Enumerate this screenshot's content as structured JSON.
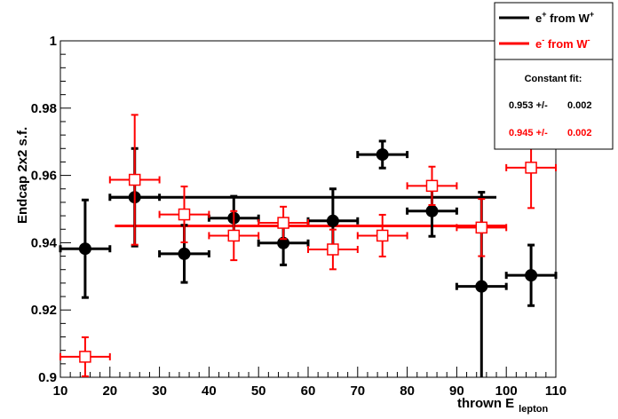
{
  "chart_data": {
    "type": "scatter",
    "xlabel_main": "thrown E",
    "xlabel_sub": "lepton",
    "ylabel": "Endcap 2x2 s.f.",
    "xlim": [
      10,
      110
    ],
    "ylim": [
      0.9,
      1.0
    ],
    "x_ticks": [
      "10",
      "20",
      "30",
      "40",
      "50",
      "60",
      "70",
      "80",
      "90",
      "100",
      "110"
    ],
    "y_ticks": [
      "0.9",
      "0.92",
      "0.94",
      "0.96",
      "0.98",
      "1"
    ],
    "grid": false,
    "legend": {
      "position": "top-right",
      "entries": [
        {
          "base": "e",
          "sup": "+",
          "text": " from W",
          "sup2": "+",
          "color": "#000000"
        },
        {
          "base": "e",
          "sup": "-",
          "text": " from W",
          "sup2": "-",
          "color": "#ff0000"
        }
      ],
      "fit_title": "Constant fit:",
      "fits": [
        {
          "value": "0.953 +/-",
          "error": "0.002",
          "color": "#000000"
        },
        {
          "value": "0.945 +/-",
          "error": "0.002",
          "color": "#ff0000"
        }
      ]
    },
    "series": [
      {
        "name": "e+ from W+",
        "color": "#000000",
        "marker": "filled-circle",
        "points": [
          {
            "x": 15,
            "xerr": 5,
            "y": 0.9382,
            "yerr": 0.0145
          },
          {
            "x": 25,
            "xerr": 5,
            "y": 0.9535,
            "yerr": 0.0145
          },
          {
            "x": 35,
            "xerr": 5,
            "y": 0.9367,
            "yerr": 0.0085
          },
          {
            "x": 45,
            "xerr": 5,
            "y": 0.9473,
            "yerr": 0.0065
          },
          {
            "x": 55,
            "xerr": 5,
            "y": 0.9399,
            "yerr": 0.0065
          },
          {
            "x": 65,
            "xerr": 5,
            "y": 0.9465,
            "yerr": 0.0095
          },
          {
            "x": 75,
            "xerr": 5,
            "y": 0.9662,
            "yerr": 0.004
          },
          {
            "x": 85,
            "xerr": 5,
            "y": 0.9494,
            "yerr": 0.0075
          },
          {
            "x": 95,
            "xerr": 5,
            "y": 0.927,
            "yerr": 0.028
          },
          {
            "x": 105,
            "xerr": 5,
            "y": 0.9303,
            "yerr": 0.009
          }
        ],
        "fit": {
          "value": 0.9535,
          "x_range": [
            20,
            98
          ]
        }
      },
      {
        "name": "e- from W-",
        "color": "#ff0000",
        "marker": "open-square",
        "points": [
          {
            "x": 15,
            "xerr": 5,
            "y": 0.9061,
            "yerr": 0.0058
          },
          {
            "x": 25,
            "xerr": 5,
            "y": 0.9587,
            "yerr": 0.0193
          },
          {
            "x": 35,
            "xerr": 5,
            "y": 0.9484,
            "yerr": 0.0083
          },
          {
            "x": 45,
            "xerr": 5,
            "y": 0.9421,
            "yerr": 0.0073
          },
          {
            "x": 55,
            "xerr": 5,
            "y": 0.9459,
            "yerr": 0.0048
          },
          {
            "x": 65,
            "xerr": 5,
            "y": 0.938,
            "yerr": 0.0059
          },
          {
            "x": 75,
            "xerr": 5,
            "y": 0.9421,
            "yerr": 0.0062
          },
          {
            "x": 85,
            "xerr": 5,
            "y": 0.9569,
            "yerr": 0.0057
          },
          {
            "x": 95,
            "xerr": 5,
            "y": 0.9445,
            "yerr": 0.0085
          },
          {
            "x": 105,
            "xerr": 5,
            "y": 0.9623,
            "yerr": 0.012
          }
        ],
        "fit": {
          "value": 0.945,
          "x_range": [
            21,
            100
          ]
        }
      }
    ]
  }
}
